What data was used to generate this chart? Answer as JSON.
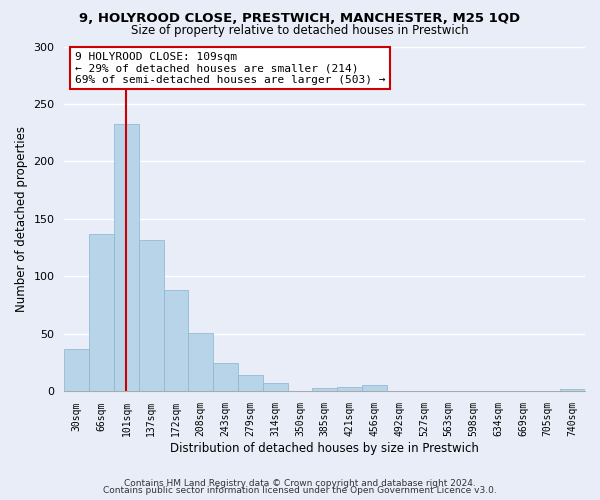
{
  "title": "9, HOLYROOD CLOSE, PRESTWICH, MANCHESTER, M25 1QD",
  "subtitle": "Size of property relative to detached houses in Prestwich",
  "xlabel": "Distribution of detached houses by size in Prestwich",
  "ylabel": "Number of detached properties",
  "bar_color": "#b8d4e8",
  "bar_edge_color": "#8ab4d0",
  "bins": [
    "30sqm",
    "66sqm",
    "101sqm",
    "137sqm",
    "172sqm",
    "208sqm",
    "243sqm",
    "279sqm",
    "314sqm",
    "350sqm",
    "385sqm",
    "421sqm",
    "456sqm",
    "492sqm",
    "527sqm",
    "563sqm",
    "598sqm",
    "634sqm",
    "669sqm",
    "705sqm",
    "740sqm"
  ],
  "values": [
    37,
    137,
    233,
    132,
    88,
    51,
    25,
    14,
    7,
    0,
    3,
    4,
    6,
    0,
    0,
    0,
    0,
    0,
    0,
    0,
    2
  ],
  "ylim": [
    0,
    300
  ],
  "yticks": [
    0,
    50,
    100,
    150,
    200,
    250,
    300
  ],
  "vline_bin_index": 2,
  "vline_color": "#cc0000",
  "annotation_title": "9 HOLYROOD CLOSE: 109sqm",
  "annotation_line1": "← 29% of detached houses are smaller (214)",
  "annotation_line2": "69% of semi-detached houses are larger (503) →",
  "annotation_box_color": "#ffffff",
  "annotation_box_edge": "#cc0000",
  "footer1": "Contains HM Land Registry data © Crown copyright and database right 2024.",
  "footer2": "Contains public sector information licensed under the Open Government Licence v3.0.",
  "background_color": "#e8edf8",
  "plot_bg_color": "#e8edf8",
  "grid_color": "#ffffff"
}
